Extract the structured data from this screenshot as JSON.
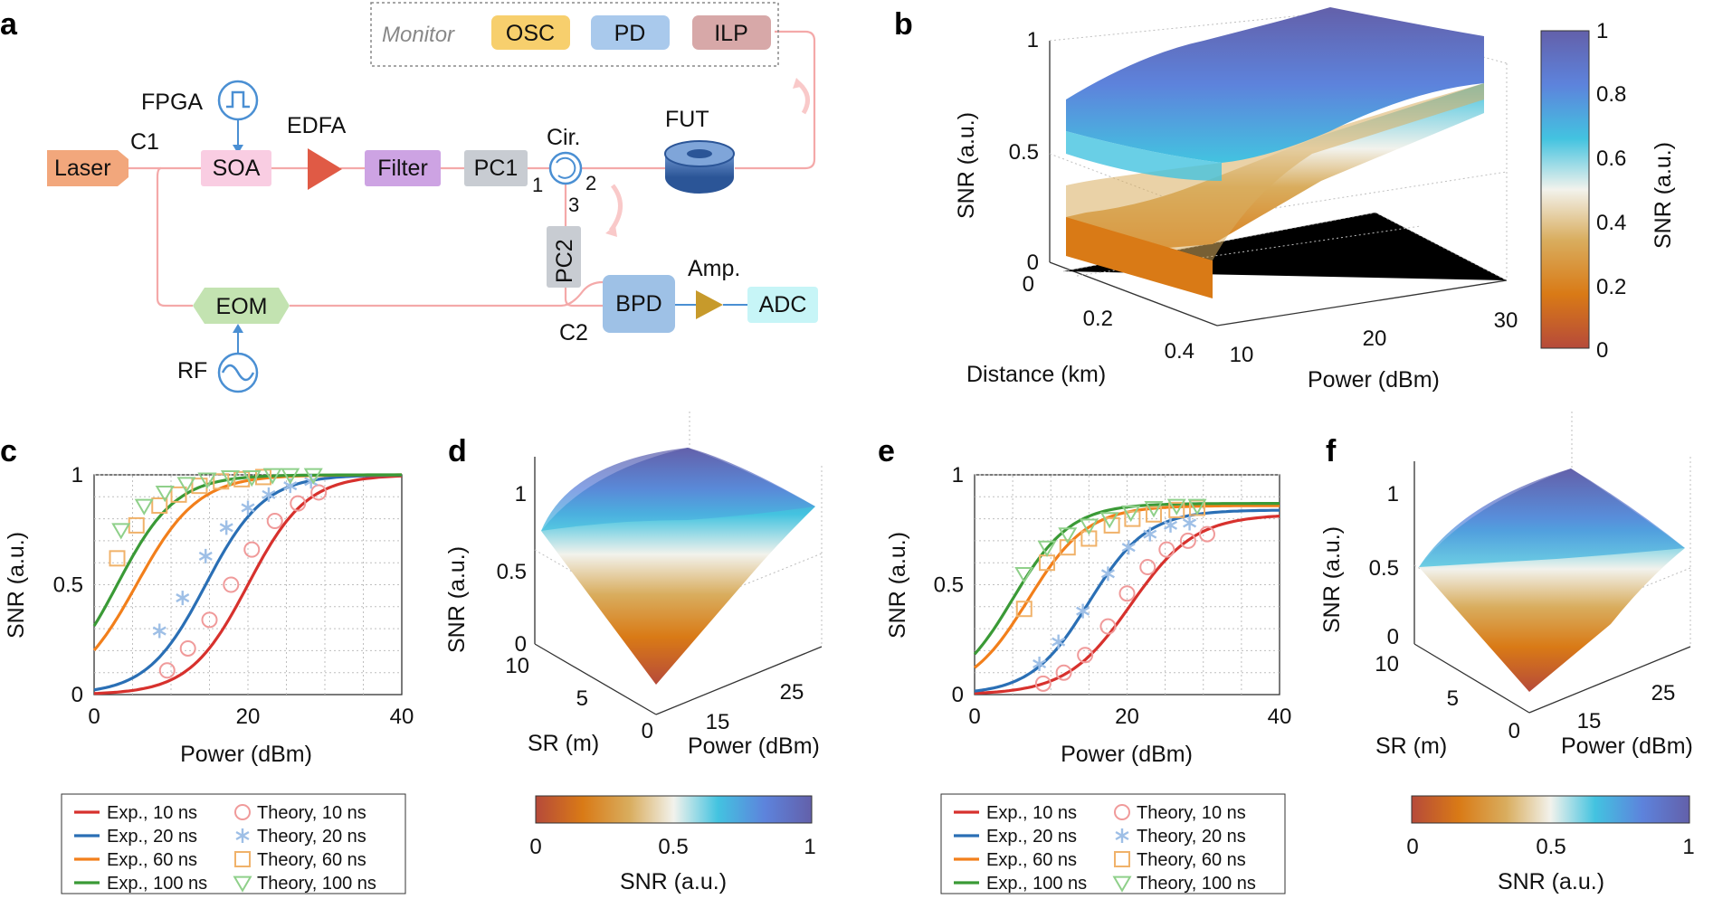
{
  "panels": {
    "a": "a",
    "b": "b",
    "c": "c",
    "d": "d",
    "e": "e",
    "f": "f"
  },
  "schematic": {
    "monitor_label": "Monitor",
    "osc": "OSC",
    "pd": "PD",
    "ilp": "ILP",
    "fpga": "FPGA",
    "laser": "Laser",
    "c1": "C1",
    "soa": "SOA",
    "edfa": "EDFA",
    "filter": "Filter",
    "pc1": "PC1",
    "cir": "Cir.",
    "port1": "1",
    "port2": "2",
    "port3": "3",
    "fut": "FUT",
    "pc2": "PC2",
    "eom": "EOM",
    "rf": "RF",
    "bpd": "BPD",
    "amp": "Amp.",
    "adc": "ADC",
    "c2": "C2",
    "colors": {
      "laser": "#f2a77c",
      "soa": "#f9cde2",
      "edfa": "#e05a45",
      "filter": "#cda3e3",
      "pc": "#c8ccd2",
      "fut": "#3f6fb0",
      "eom": "#c3e3b1",
      "bpd": "#9ec1e6",
      "amp": "#c79a2b",
      "adc": "#c7f5f7",
      "osc": "#f7cf6d",
      "pd": "#a9c9ec",
      "ilp": "#d7a8a8",
      "fiber": "#f4a9a9",
      "blue": "#4a8fd3"
    }
  },
  "colorbars": {
    "colormap": [
      "#b64a3a",
      "#d97a16",
      "#d9ad5e",
      "#f2f2ec",
      "#43c3e0",
      "#5d83dc",
      "#6360aa"
    ],
    "b": {
      "label": "SNR (a.u.)",
      "ticks": [
        "0",
        "0.2",
        "0.4",
        "0.6",
        "0.8",
        "1"
      ]
    },
    "d": {
      "label": "SNR (a.u.)",
      "ticks": [
        "0",
        "0.5",
        "1"
      ]
    },
    "f": {
      "label": "SNR (a.u.)",
      "ticks": [
        "0",
        "0.5",
        "1"
      ]
    }
  },
  "surfaces": {
    "b": {
      "zlabel": "SNR (a.u.)",
      "xlabel": "Distance (km)",
      "ylabel": "Power (dBm)",
      "zticks": [
        "0",
        "0.5",
        "1"
      ],
      "xticks": [
        "0",
        "0.2",
        "0.4"
      ],
      "yticks": [
        "10",
        "20",
        "30"
      ]
    },
    "d": {
      "zlabel": "SNR (a.u.)",
      "xlabel": "SR (m)",
      "ylabel": "Power (dBm)",
      "zticks": [
        "0",
        "0.5",
        "1"
      ],
      "xticks": [
        "10",
        "5",
        "0"
      ],
      "yticks": [
        "15",
        "25"
      ]
    },
    "f": {
      "zlabel": "SNR (a.u.)",
      "xlabel": "SR (m)",
      "ylabel": "Power (dBm)",
      "zticks": [
        "0",
        "0.5",
        "1"
      ],
      "xticks": [
        "10",
        "5",
        "0"
      ],
      "yticks": [
        "15",
        "25"
      ]
    }
  },
  "chart_data": [
    {
      "panel": "c",
      "type": "line",
      "xlabel": "Power (dBm)",
      "ylabel": "SNR (a.u.)",
      "xlim": [
        0,
        40
      ],
      "ylim": [
        0,
        1
      ],
      "xticks": [
        "0",
        "20",
        "40"
      ],
      "yticks": [
        "0",
        "0.5",
        "1"
      ],
      "series": [
        {
          "name": "Exp., 10 ns",
          "color": "#d7312d",
          "p0": 20.0,
          "w": 3.8,
          "vmin": 0,
          "vmax": 1.0
        },
        {
          "name": "Exp., 20 ns",
          "color": "#2a6fb5",
          "p0": 14.5,
          "w": 3.8,
          "vmin": 0,
          "vmax": 1.0
        },
        {
          "name": "Exp., 60 ns",
          "color": "#f27f1b",
          "p0": 5.5,
          "w": 4.0,
          "vmin": 0,
          "vmax": 1.0
        },
        {
          "name": "Exp., 100 ns",
          "color": "#3a9a36",
          "p0": 3.0,
          "w": 3.8,
          "vmin": 0,
          "vmax": 1.0
        }
      ],
      "markers": [
        {
          "name": "Theory, 10 ns",
          "shape": "circle",
          "color": "#f09a9a",
          "points": [
            [
              9.5,
              0.11
            ],
            [
              12.2,
              0.21
            ],
            [
              15.0,
              0.34
            ],
            [
              17.8,
              0.5
            ],
            [
              20.5,
              0.66
            ],
            [
              23.5,
              0.79
            ],
            [
              26.5,
              0.87
            ],
            [
              29.2,
              0.92
            ]
          ]
        },
        {
          "name": "Theory, 20 ns",
          "shape": "star",
          "color": "#9ebfe6",
          "points": [
            [
              8.5,
              0.29
            ],
            [
              11.5,
              0.44
            ],
            [
              14.5,
              0.63
            ],
            [
              17.2,
              0.76
            ],
            [
              20.0,
              0.85
            ],
            [
              22.7,
              0.91
            ],
            [
              25.5,
              0.95
            ],
            [
              28.2,
              0.97
            ]
          ]
        },
        {
          "name": "Theory, 60 ns",
          "shape": "square",
          "color": "#f0b26a",
          "points": [
            [
              3.0,
              0.62
            ],
            [
              5.5,
              0.77
            ],
            [
              8.5,
              0.86
            ],
            [
              11.0,
              0.91
            ],
            [
              13.7,
              0.95
            ],
            [
              16.5,
              0.97
            ],
            [
              19.2,
              0.98
            ],
            [
              22.0,
              0.99
            ]
          ]
        },
        {
          "name": "Theory, 100 ns",
          "shape": "triangle",
          "color": "#8fd08a",
          "points": [
            [
              3.5,
              0.75
            ],
            [
              6.5,
              0.86
            ],
            [
              9.2,
              0.92
            ],
            [
              12.0,
              0.96
            ],
            [
              14.7,
              0.98
            ],
            [
              17.7,
              0.99
            ],
            [
              20.5,
              0.99
            ],
            [
              23.2,
              1.0
            ],
            [
              25.5,
              1.0
            ],
            [
              28.5,
              1.0
            ]
          ]
        }
      ]
    },
    {
      "panel": "e",
      "type": "line",
      "xlabel": "Power (dBm)",
      "ylabel": "SNR (a.u.)",
      "xlim": [
        0,
        40
      ],
      "ylim": [
        0,
        1
      ],
      "xticks": [
        "0",
        "20",
        "40"
      ],
      "yticks": [
        "0",
        "0.5",
        "1"
      ],
      "series": [
        {
          "name": "Exp., 10 ns",
          "color": "#d7312d",
          "p0": 20.5,
          "w": 4.2,
          "vmin": 0,
          "vmax": 0.82
        },
        {
          "name": "Exp., 20 ns",
          "color": "#2a6fb5",
          "p0": 15.0,
          "w": 3.8,
          "vmin": 0,
          "vmax": 0.84
        },
        {
          "name": "Exp., 60 ns",
          "color": "#f27f1b",
          "p0": 7.0,
          "w": 3.9,
          "vmin": 0,
          "vmax": 0.86
        },
        {
          "name": "Exp., 100 ns",
          "color": "#3a9a36",
          "p0": 5.0,
          "w": 3.8,
          "vmin": 0,
          "vmax": 0.87
        }
      ],
      "markers": [
        {
          "name": "Theory, 10 ns",
          "shape": "circle",
          "color": "#f09a9a",
          "points": [
            [
              9.0,
              0.05
            ],
            [
              11.7,
              0.1
            ],
            [
              14.5,
              0.18
            ],
            [
              17.5,
              0.31
            ],
            [
              20.0,
              0.46
            ],
            [
              22.7,
              0.58
            ],
            [
              25.2,
              0.66
            ],
            [
              28.0,
              0.7
            ],
            [
              30.5,
              0.73
            ]
          ]
        },
        {
          "name": "Theory, 20 ns",
          "shape": "star",
          "color": "#9ebfe6",
          "points": [
            [
              8.5,
              0.14
            ],
            [
              11.0,
              0.24
            ],
            [
              14.2,
              0.38
            ],
            [
              17.5,
              0.55
            ],
            [
              20.2,
              0.67
            ],
            [
              23.0,
              0.73
            ],
            [
              25.7,
              0.77
            ],
            [
              28.2,
              0.78
            ]
          ]
        },
        {
          "name": "Theory, 60 ns",
          "shape": "square",
          "color": "#f0b26a",
          "points": [
            [
              6.5,
              0.39
            ],
            [
              9.5,
              0.6
            ],
            [
              12.2,
              0.67
            ],
            [
              15.0,
              0.71
            ],
            [
              18.0,
              0.77
            ],
            [
              20.7,
              0.8
            ],
            [
              23.5,
              0.82
            ],
            [
              26.5,
              0.84
            ],
            [
              29.2,
              0.85
            ]
          ]
        },
        {
          "name": "Theory, 100 ns",
          "shape": "triangle",
          "color": "#8fd08a",
          "points": [
            [
              6.5,
              0.55
            ],
            [
              9.5,
              0.67
            ],
            [
              12.2,
              0.73
            ],
            [
              15.0,
              0.77
            ],
            [
              17.7,
              0.8
            ],
            [
              20.5,
              0.83
            ],
            [
              23.5,
              0.85
            ],
            [
              26.5,
              0.86
            ],
            [
              29.2,
              0.86
            ]
          ]
        }
      ]
    }
  ]
}
